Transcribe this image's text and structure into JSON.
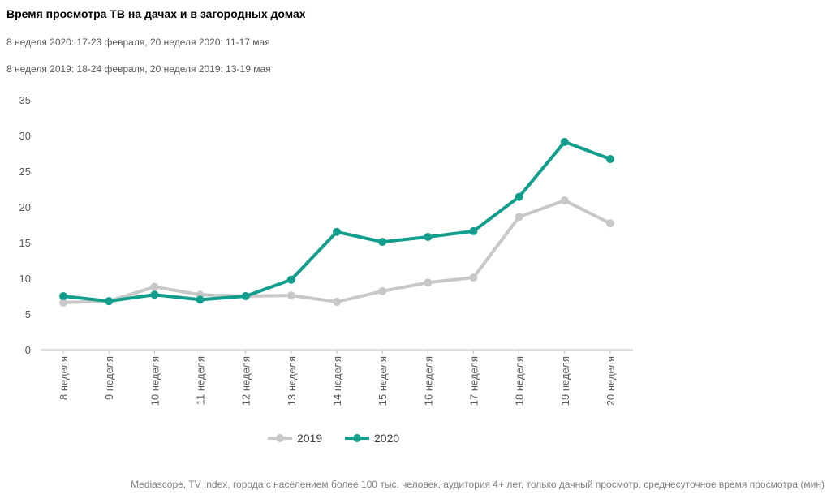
{
  "chart_data": {
    "type": "line",
    "title": "Время просмотра ТВ на дачах и в загородных домах",
    "subtitles": [
      "8 неделя 2020: 17-23 февраля, 20 неделя 2020: 11-17 мая",
      "8 неделя 2019: 18-24 февраля, 20 неделя 2019: 13-19 мая"
    ],
    "categories": [
      "8 неделя",
      "9 неделя",
      "10 неделя",
      "11 неделя",
      "12 неделя",
      "13 неделя",
      "14 неделя",
      "15 неделя",
      "16 неделя",
      "17 неделя",
      "18 неделя",
      "19 неделя",
      "20 неделя"
    ],
    "series": [
      {
        "name": "2019",
        "color": "#c8c8c8",
        "values": [
          6.6,
          6.8,
          8.8,
          7.7,
          7.5,
          7.6,
          6.7,
          8.2,
          9.4,
          10.1,
          18.6,
          20.9,
          17.7
        ]
      },
      {
        "name": "2020",
        "color": "#129e8c",
        "values": [
          7.5,
          6.8,
          7.7,
          7.0,
          7.5,
          9.8,
          16.5,
          15.1,
          15.8,
          16.6,
          21.4,
          29.1,
          26.7
        ]
      }
    ],
    "ylim": [
      0,
      35
    ],
    "yticks": [
      0,
      5,
      10,
      15,
      20,
      25,
      30,
      35
    ],
    "grid": false,
    "source": "Mediascope, TV Index, города с населением более 100 тыс. человек, аудитория 4+ лет, только дачный просмотр, среднесуточное время просмотра (мин)"
  }
}
